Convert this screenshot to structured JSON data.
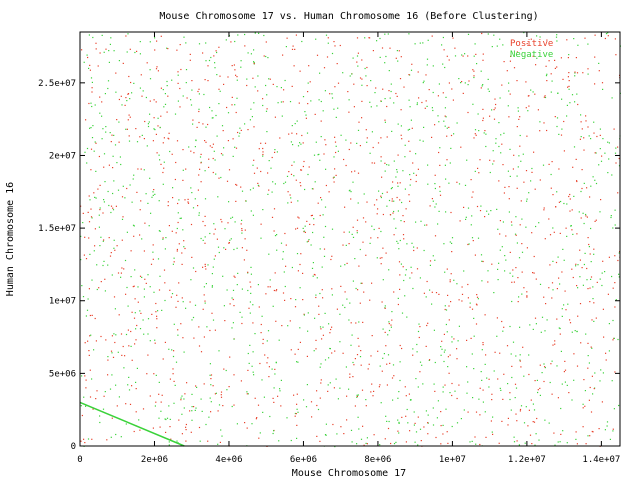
{
  "chart_data": {
    "type": "scatter",
    "title": "Mouse Chromosome 17 vs. Human Chromosome 16 (Before Clustering)",
    "xlabel": "Mouse Chromosome 17",
    "ylabel": "Human Chromosome 16",
    "xlim": [
      0,
      14500000
    ],
    "ylim": [
      0,
      28500000
    ],
    "x_ticks": [
      "0",
      "2e+06",
      "4e+06",
      "6e+06",
      "8e+06",
      "1e+07",
      "1.2e+07",
      "1.4e+07"
    ],
    "x_tick_values": [
      0,
      2000000,
      4000000,
      6000000,
      8000000,
      10000000,
      12000000,
      14000000
    ],
    "y_ticks": [
      "0",
      "5e+06",
      "1e+07",
      "1.5e+07",
      "2e+07",
      "2.5e+07"
    ],
    "y_tick_values": [
      0,
      5000000,
      10000000,
      15000000,
      20000000,
      25000000
    ],
    "legend_position": "top-right",
    "grid": false,
    "series": [
      {
        "name": "Positive",
        "color": "#e8402a",
        "marker": "dot",
        "distribution": "dense uniform scatter across plot area"
      },
      {
        "name": "Negative",
        "color": "#3ad23a",
        "marker": "dot",
        "distribution": "dense uniform scatter across plot area",
        "diagonal_segment": {
          "x": [
            0,
            2800000
          ],
          "y": [
            3000000,
            0
          ]
        }
      }
    ]
  }
}
